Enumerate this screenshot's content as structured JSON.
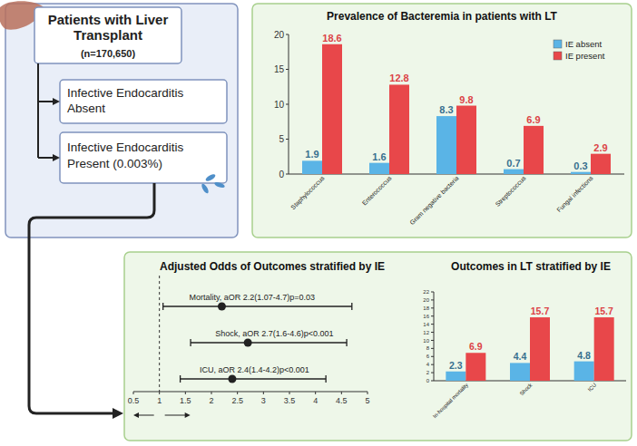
{
  "diagram": {
    "nodes": [
      {
        "label": "Patients with Liver Transplant",
        "sublabel": "(n=170,650)"
      },
      {
        "label": "Infective Endocarditis Absent"
      },
      {
        "label": "Infective Endocarditis Present (0.003%)"
      }
    ]
  },
  "chart_data": [
    {
      "type": "bar",
      "title": "Prevalence of Bacteremia in patients with LT",
      "categories": [
        "Staphylococcus",
        "Enterococcus",
        "Gram negative bacteria",
        "Streptococcus",
        "Fungal infections"
      ],
      "series": [
        {
          "name": "IE absent",
          "color": "#5ab4e6",
          "values": [
            1.9,
            1.6,
            8.3,
            0.7,
            0.3
          ]
        },
        {
          "name": "IE present",
          "color": "#e8474a",
          "values": [
            18.6,
            12.8,
            9.8,
            6.9,
            2.9
          ]
        }
      ],
      "ylim": [
        0,
        20
      ],
      "yticks": [
        0,
        5,
        10,
        15,
        20
      ],
      "legend": "top-right",
      "data_labels": true
    },
    {
      "type": "forest",
      "title": "Adjusted Odds of Outcomes stratified by IE",
      "categories": [
        "Mortality, aOR 2.2(1.07-4.7)p=0.03",
        "Shock, aOR 2.7(1.6-4.6)p<0.001",
        "ICU, aOR 2.4(1.4-4.2)p<0.001"
      ],
      "values": [
        2.2,
        2.7,
        2.4
      ],
      "lower": [
        1.07,
        1.6,
        1.4
      ],
      "upper": [
        4.7,
        4.6,
        4.2
      ],
      "reference": 1,
      "xlim": [
        0.5,
        5
      ],
      "xticks": [
        0.5,
        1,
        1.5,
        2,
        2.5,
        3,
        3.5,
        4,
        4.5,
        5
      ]
    },
    {
      "type": "bar",
      "title": "Outcomes in LT stratified by IE",
      "categories": [
        "In-hospital mortality",
        "Shock",
        "ICU"
      ],
      "series": [
        {
          "color": "#5ab4e6",
          "values": [
            2.3,
            4.4,
            4.8
          ]
        },
        {
          "color": "#e8474a",
          "values": [
            6.9,
            15.7,
            15.7
          ]
        }
      ],
      "ylim": [
        0,
        22
      ],
      "yticks": [
        0,
        2,
        4,
        6,
        8,
        10,
        12,
        14,
        16,
        18,
        20,
        22
      ],
      "data_labels": true
    }
  ]
}
